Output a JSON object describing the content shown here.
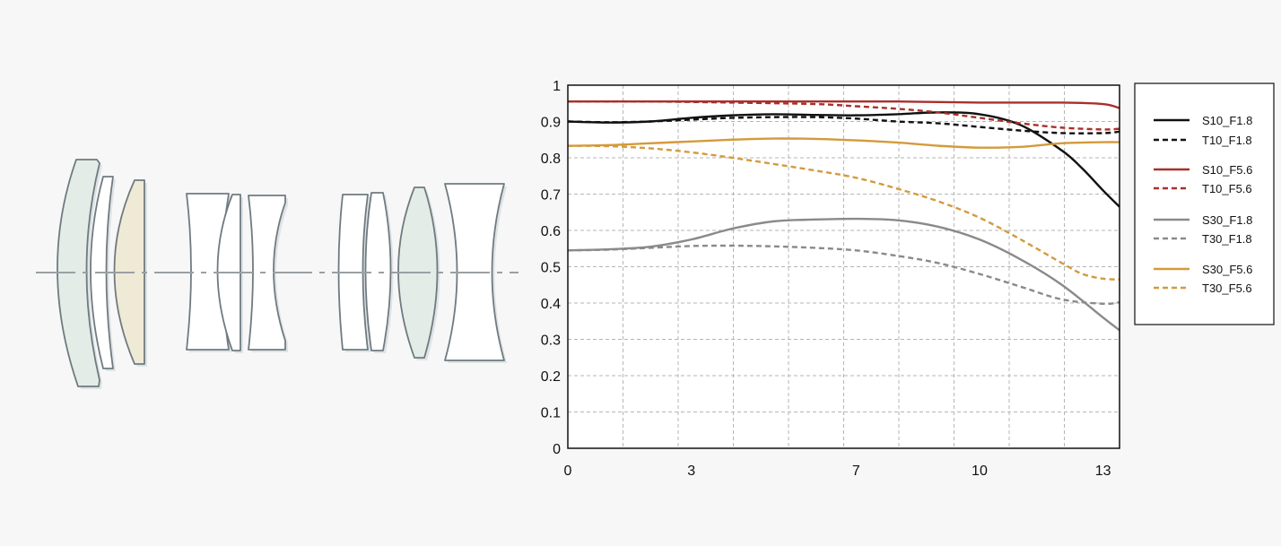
{
  "colors": {
    "background": "#f7f7f7",
    "s10_f18": "#111111",
    "s10_f56": "#a8302c",
    "s30_f18": "#8a8a8a",
    "s30_f56": "#d49a3c",
    "lens_outline": "#6f7b80",
    "lens_fill_white": "#ffffff",
    "lens_fill_green": "#e3ece6",
    "lens_fill_yellow": "#efead6",
    "axis_line": "#9aa0a4"
  },
  "lens_diagram": {
    "elements": [
      {
        "group": 1,
        "fill": "green"
      },
      {
        "group": 1,
        "fill": "white"
      },
      {
        "group": 1,
        "fill": "yellow"
      },
      {
        "group": 2,
        "fill": "white"
      },
      {
        "group": 2,
        "fill": "white"
      },
      {
        "group": 2,
        "fill": "white"
      },
      {
        "group": 3,
        "fill": "white"
      },
      {
        "group": 3,
        "fill": "white"
      },
      {
        "group": 3,
        "fill": "green"
      },
      {
        "group": 3,
        "fill": "white"
      }
    ]
  },
  "chart_data": {
    "type": "line",
    "title": "",
    "xlabel": "",
    "ylabel": "",
    "xlim": [
      0,
      13.4
    ],
    "ylim": [
      0,
      1
    ],
    "x_ticks": [
      0,
      3,
      7,
      10,
      13
    ],
    "y_ticks": [
      0,
      0.1,
      0.2,
      0.3,
      0.4,
      0.5,
      0.6,
      0.7,
      0.8,
      0.9,
      1
    ],
    "y_tick_labels": [
      "0",
      "0.1",
      "0.2",
      "0.3",
      "0.4",
      "0.5",
      "0.6",
      "0.7",
      "0.8",
      "0.9",
      "1"
    ],
    "grid": true,
    "legend_position": "right",
    "series": [
      {
        "name": "S10_F1.8",
        "color": "#111111",
        "dash": false,
        "x": [
          0,
          1,
          2,
          3,
          4,
          5,
          6,
          7,
          8,
          9,
          10,
          11,
          12,
          12.5,
          13,
          13.4
        ],
        "y": [
          0.9,
          0.897,
          0.9,
          0.91,
          0.917,
          0.92,
          0.918,
          0.917,
          0.92,
          0.925,
          0.92,
          0.89,
          0.82,
          0.77,
          0.71,
          0.665
        ]
      },
      {
        "name": "T10_F1.8",
        "color": "#111111",
        "dash": true,
        "x": [
          0,
          1,
          2,
          3,
          4,
          5,
          6,
          7,
          8,
          9,
          10,
          11,
          12,
          13,
          13.4
        ],
        "y": [
          0.9,
          0.898,
          0.9,
          0.905,
          0.91,
          0.912,
          0.912,
          0.908,
          0.9,
          0.895,
          0.885,
          0.875,
          0.868,
          0.868,
          0.872
        ]
      },
      {
        "name": "S10_F5.6",
        "color": "#a8302c",
        "dash": false,
        "x": [
          0,
          2,
          4,
          6,
          8,
          10,
          12,
          13,
          13.4
        ],
        "y": [
          0.955,
          0.955,
          0.955,
          0.955,
          0.955,
          0.952,
          0.952,
          0.948,
          0.937
        ]
      },
      {
        "name": "T10_F5.6",
        "color": "#a8302c",
        "dash": true,
        "x": [
          0,
          2,
          4,
          6,
          7,
          8,
          9,
          10,
          11,
          12,
          13,
          13.4
        ],
        "y": [
          0.955,
          0.955,
          0.952,
          0.948,
          0.942,
          0.935,
          0.925,
          0.91,
          0.895,
          0.883,
          0.878,
          0.88
        ]
      },
      {
        "name": "S30_F1.8",
        "color": "#8a8a8a",
        "dash": false,
        "x": [
          0,
          1,
          2,
          3,
          4,
          5,
          6,
          7,
          8,
          9,
          10,
          11,
          12,
          13,
          13.4
        ],
        "y": [
          0.545,
          0.548,
          0.555,
          0.575,
          0.605,
          0.625,
          0.63,
          0.632,
          0.628,
          0.61,
          0.575,
          0.52,
          0.45,
          0.36,
          0.325
        ]
      },
      {
        "name": "T30_F1.8",
        "color": "#8a8a8a",
        "dash": true,
        "x": [
          0,
          1,
          2,
          3,
          4,
          5,
          6,
          7,
          8,
          9,
          10,
          11,
          12,
          13,
          13.4
        ],
        "y": [
          0.545,
          0.547,
          0.552,
          0.557,
          0.558,
          0.556,
          0.552,
          0.545,
          0.53,
          0.51,
          0.48,
          0.445,
          0.41,
          0.398,
          0.402
        ]
      },
      {
        "name": "S30_F5.6",
        "color": "#d49a3c",
        "dash": false,
        "x": [
          0,
          1,
          2,
          3,
          4,
          5,
          6,
          7,
          8,
          9,
          10,
          11,
          12,
          13,
          13.4
        ],
        "y": [
          0.833,
          0.835,
          0.84,
          0.845,
          0.85,
          0.853,
          0.852,
          0.848,
          0.842,
          0.833,
          0.828,
          0.83,
          0.84,
          0.843,
          0.843
        ]
      },
      {
        "name": "T30_F5.6",
        "color": "#d49a3c",
        "dash": true,
        "x": [
          0,
          1,
          2,
          3,
          4,
          5,
          6,
          7,
          8,
          9,
          10,
          11,
          12,
          12.5,
          13,
          13.4
        ],
        "y": [
          0.833,
          0.832,
          0.826,
          0.815,
          0.8,
          0.783,
          0.765,
          0.745,
          0.715,
          0.68,
          0.635,
          0.575,
          0.51,
          0.48,
          0.467,
          0.465
        ]
      }
    ]
  }
}
